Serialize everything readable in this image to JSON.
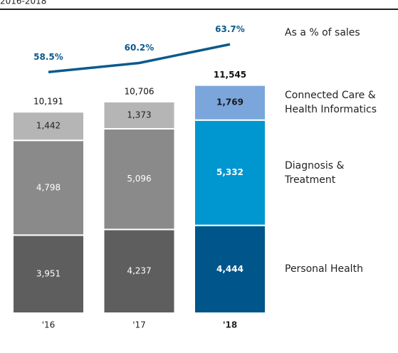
{
  "chart_data": {
    "type": "stacked-bar-line",
    "title": "2016-2018",
    "categories": [
      "'16",
      "'17",
      "'18"
    ],
    "highlight_index": 2,
    "ylim": [
      0,
      12000
    ],
    "y2lim": [
      50,
      70
    ],
    "series": [
      {
        "name": "Personal Health",
        "colors": [
          "#5e5e5e",
          "#5e5e5e",
          "#00558a"
        ],
        "label_colors": [
          "#ffffff",
          "#ffffff",
          "#ffffff"
        ],
        "values": [
          3951,
          4237,
          4444
        ],
        "value_labels": [
          "3,951",
          "4,237",
          "4,444"
        ]
      },
      {
        "name": "Diagnosis & Treatment",
        "colors": [
          "#8a8a8a",
          "#8a8a8a",
          "#0096cf"
        ],
        "label_colors": [
          "#ffffff",
          "#ffffff",
          "#ffffff"
        ],
        "values": [
          4798,
          5096,
          5332
        ],
        "value_labels": [
          "4,798",
          "5,096",
          "5,332"
        ]
      },
      {
        "name": "Connected Care & Health Informatics",
        "colors": [
          "#b5b5b5",
          "#b5b5b5",
          "#7aa6dc"
        ],
        "label_colors": [
          "#222222",
          "#222222",
          "#1a1a1a"
        ],
        "values": [
          1442,
          1373,
          1769
        ],
        "value_labels": [
          "1,442",
          "1,373",
          "1,769"
        ]
      },
      {
        "name": "As a % of sales",
        "axis": "y2",
        "color": "#0b5a8c",
        "values": [
          58.5,
          60.2,
          63.7
        ],
        "value_labels": [
          "58.5%",
          "60.2%",
          "63.7%"
        ]
      }
    ],
    "totals": [
      10191,
      10706,
      11545
    ],
    "total_labels": [
      "10,191",
      "10,706",
      "11,545"
    ]
  }
}
